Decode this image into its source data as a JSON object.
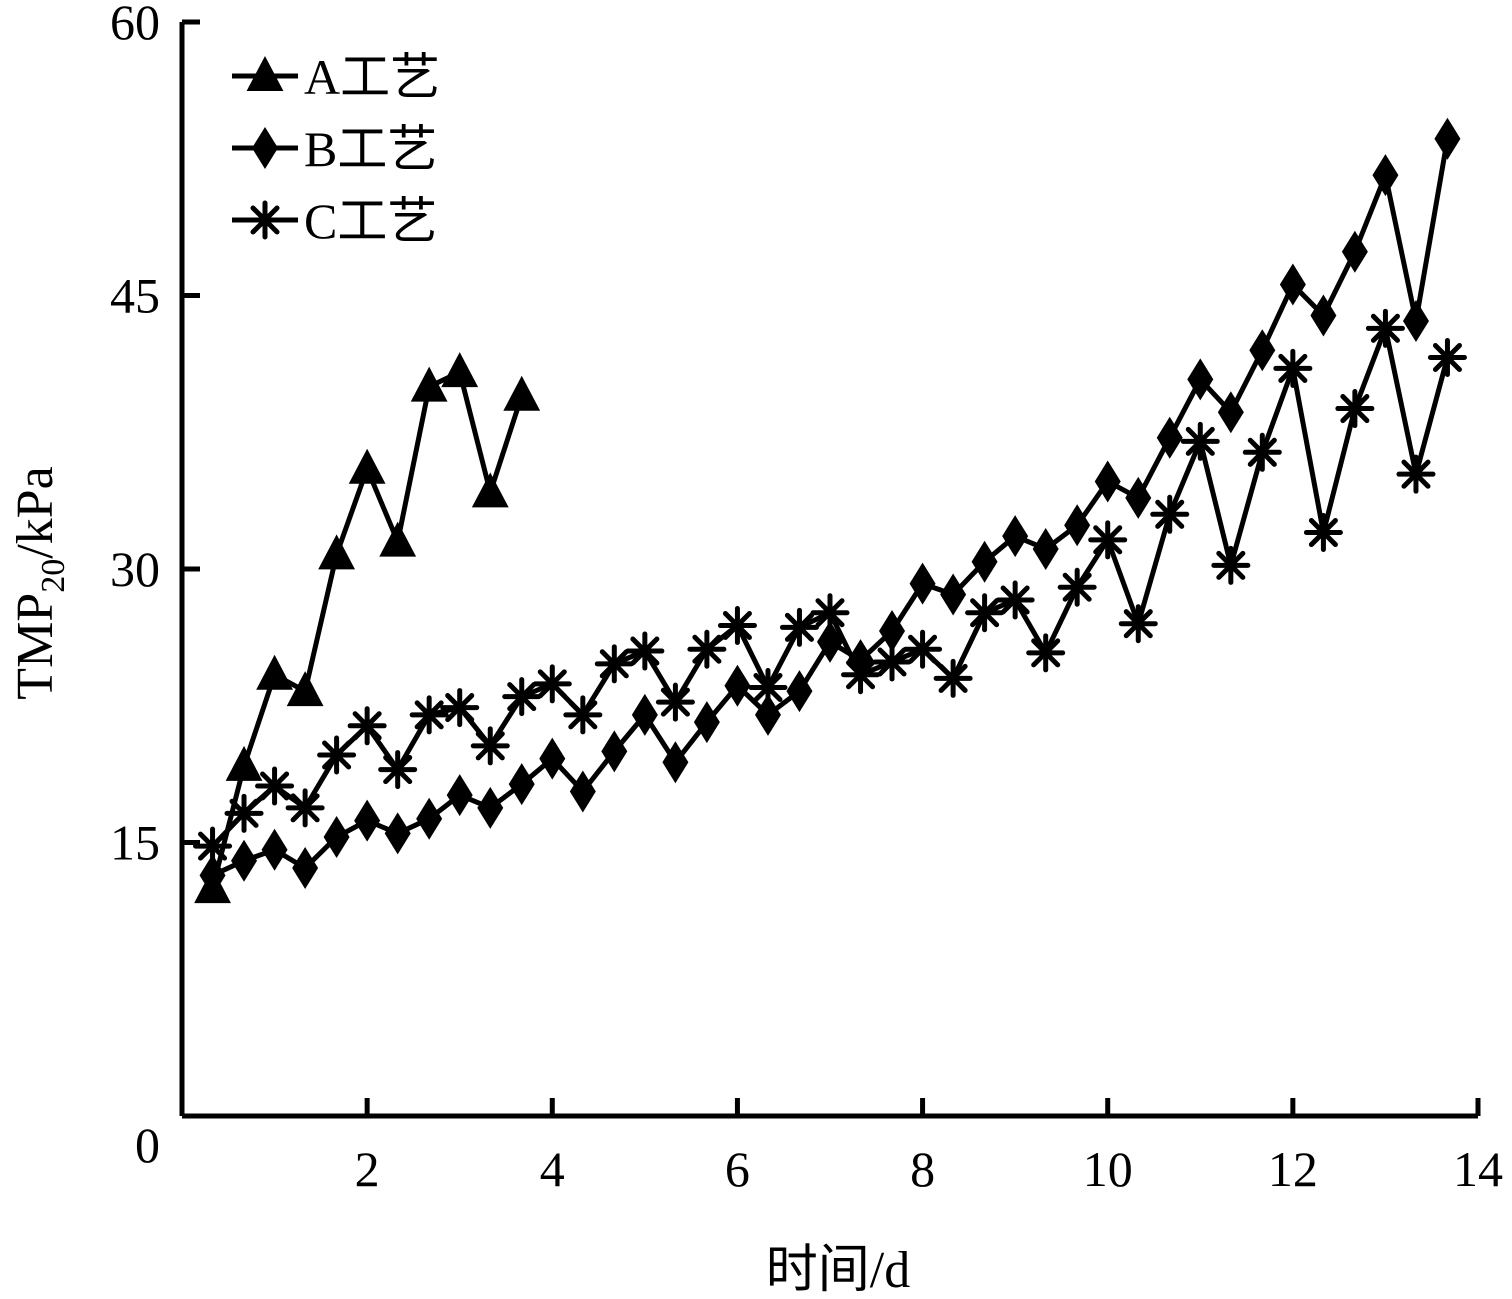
{
  "chart_data": {
    "type": "line",
    "xlabel": "时间/d",
    "ylabel": {
      "main": "TMP",
      "sub": "20",
      "unit": "/kPa"
    },
    "xlim": [
      0,
      14
    ],
    "ylim": [
      0,
      60
    ],
    "xticks": [
      2,
      4,
      6,
      8,
      10,
      12,
      14
    ],
    "yticks": [
      0,
      15,
      30,
      45,
      60
    ],
    "grid": false,
    "legend_position": "top-left",
    "series": [
      {
        "name": "A工艺",
        "marker": "triangle",
        "x": [
          0.33,
          0.67,
          1.0,
          1.33,
          1.67,
          2.0,
          2.33,
          2.67,
          3.0,
          3.33,
          3.67
        ],
        "y": [
          12.5,
          19.2,
          24.2,
          23.3,
          30.8,
          35.5,
          31.5,
          40.0,
          40.8,
          34.2,
          39.5
        ]
      },
      {
        "name": "B工艺",
        "marker": "diamond",
        "x": [
          0.33,
          0.67,
          1.0,
          1.33,
          1.67,
          2.0,
          2.33,
          2.67,
          3.0,
          3.33,
          3.67,
          4.0,
          4.33,
          4.67,
          5.0,
          5.33,
          5.67,
          6.0,
          6.33,
          6.67,
          7.0,
          7.33,
          7.67,
          8.0,
          8.33,
          8.67,
          9.0,
          9.33,
          9.67,
          10.0,
          10.33,
          10.67,
          11.0,
          11.33,
          11.67,
          12.0,
          12.33,
          12.67,
          13.0,
          13.33,
          13.67
        ],
        "y": [
          13.2,
          14.0,
          14.6,
          13.6,
          15.3,
          16.2,
          15.5,
          16.3,
          17.6,
          16.9,
          18.2,
          19.6,
          17.8,
          20.0,
          22.0,
          19.4,
          21.6,
          23.6,
          22.0,
          23.3,
          26.0,
          25.0,
          26.6,
          29.2,
          28.6,
          30.4,
          31.8,
          31.1,
          32.4,
          34.8,
          33.9,
          37.2,
          40.4,
          38.6,
          42.0,
          45.6,
          43.9,
          47.4,
          51.6,
          43.6,
          53.6
        ]
      },
      {
        "name": "C工艺",
        "marker": "star",
        "x": [
          0.33,
          0.67,
          1.0,
          1.33,
          1.67,
          2.0,
          2.33,
          2.67,
          3.0,
          3.33,
          3.67,
          4.0,
          4.33,
          4.67,
          5.0,
          5.33,
          5.67,
          6.0,
          6.33,
          6.67,
          7.0,
          7.33,
          7.67,
          8.0,
          8.33,
          8.67,
          9.0,
          9.33,
          9.67,
          10.0,
          10.33,
          10.67,
          11.0,
          11.33,
          11.67,
          12.0,
          12.33,
          12.67,
          13.0,
          13.33,
          13.67
        ],
        "y": [
          14.8,
          16.6,
          18.1,
          16.9,
          19.8,
          21.4,
          19.0,
          22.0,
          22.4,
          20.3,
          23.0,
          23.7,
          22.0,
          24.8,
          25.5,
          22.7,
          25.6,
          26.9,
          23.5,
          26.8,
          27.6,
          24.2,
          24.9,
          25.6,
          24.0,
          27.6,
          28.3,
          25.4,
          29.0,
          31.6,
          27.0,
          33.0,
          37.0,
          30.2,
          36.4,
          41.0,
          32.0,
          38.8,
          43.2,
          35.2,
          41.6
        ]
      }
    ]
  }
}
